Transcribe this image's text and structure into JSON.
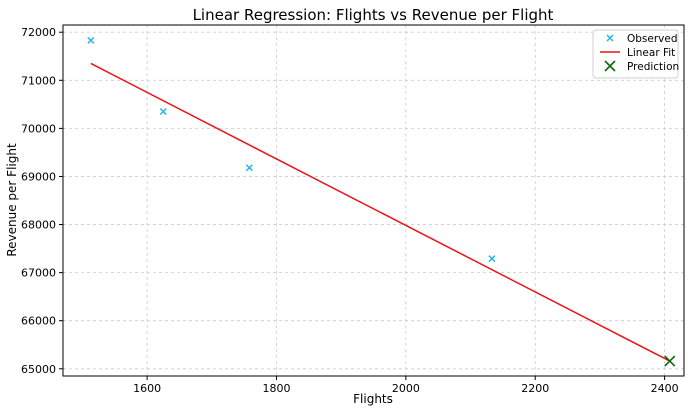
{
  "chart_data": {
    "type": "scatter",
    "title": "Linear Regression: Flights vs Revenue per Flight",
    "xlabel": "Flights",
    "ylabel": "Revenue per Flight",
    "xlim": [
      1470,
      2430
    ],
    "ylim": [
      64850,
      72150
    ],
    "x_ticks": [
      1600,
      1800,
      2000,
      2200,
      2400
    ],
    "y_ticks": [
      65000,
      66000,
      67000,
      68000,
      69000,
      70000,
      71000,
      72000
    ],
    "grid": true,
    "legend_position": "top-right",
    "series": [
      {
        "name": "Observed",
        "kind": "scatter",
        "marker": "x",
        "color": "#1fb3e8",
        "points": [
          {
            "x": 1513,
            "y": 71830
          },
          {
            "x": 1625,
            "y": 70350
          },
          {
            "x": 1758,
            "y": 69180
          },
          {
            "x": 2133,
            "y": 67290
          }
        ]
      },
      {
        "name": "Linear Fit",
        "kind": "line",
        "color": "#e8141a",
        "points": [
          {
            "x": 1513,
            "y": 71350
          },
          {
            "x": 2408,
            "y": 65160
          }
        ]
      },
      {
        "name": "Prediction",
        "kind": "scatter",
        "marker": "X",
        "color": "#0a6b0a",
        "points": [
          {
            "x": 2408,
            "y": 65160
          }
        ]
      }
    ]
  }
}
